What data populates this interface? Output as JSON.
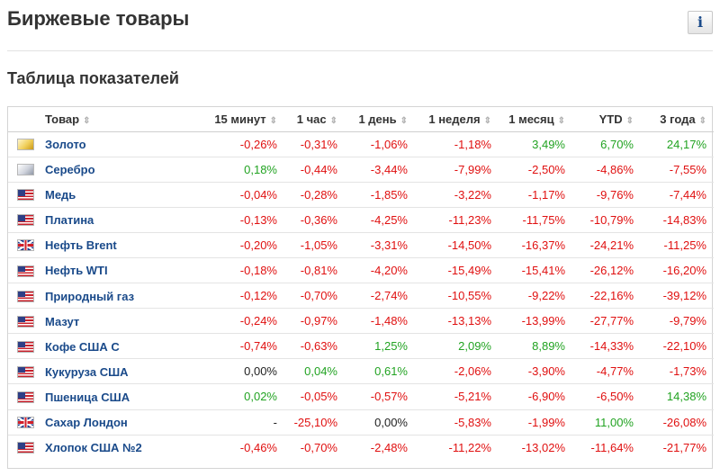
{
  "page": {
    "title": "Биржевые товары",
    "info_icon": "info-icon",
    "info_glyph": "i"
  },
  "section": {
    "title": "Таблица показателей"
  },
  "table": {
    "sort_glyph": "⇕",
    "columns": [
      {
        "key": "name",
        "label": "Товар"
      },
      {
        "key": "m15",
        "label": "15 минут"
      },
      {
        "key": "h1",
        "label": "1 час"
      },
      {
        "key": "d1",
        "label": "1 день"
      },
      {
        "key": "w1",
        "label": "1 неделя"
      },
      {
        "key": "mo1",
        "label": "1 месяц"
      },
      {
        "key": "ytd",
        "label": "YTD"
      },
      {
        "key": "y3",
        "label": "3 года"
      }
    ],
    "rows": [
      {
        "name": "Золото",
        "icon": "gold-icon",
        "values": [
          "-0,26%",
          "-0,31%",
          "-1,06%",
          "-1,18%",
          "3,49%",
          "6,70%",
          "24,17%"
        ]
      },
      {
        "name": "Серебро",
        "icon": "silver-icon",
        "values": [
          "0,18%",
          "-0,44%",
          "-3,44%",
          "-7,99%",
          "-2,50%",
          "-4,86%",
          "-7,55%"
        ]
      },
      {
        "name": "Медь",
        "icon": "us-flag-icon",
        "values": [
          "-0,04%",
          "-0,28%",
          "-1,85%",
          "-3,22%",
          "-1,17%",
          "-9,76%",
          "-7,44%"
        ]
      },
      {
        "name": "Платина",
        "icon": "us-flag-icon",
        "values": [
          "-0,13%",
          "-0,36%",
          "-4,25%",
          "-11,23%",
          "-11,75%",
          "-10,79%",
          "-14,83%"
        ]
      },
      {
        "name": "Нефть Brent",
        "icon": "uk-flag-icon",
        "values": [
          "-0,20%",
          "-1,05%",
          "-3,31%",
          "-14,50%",
          "-16,37%",
          "-24,21%",
          "-11,25%"
        ]
      },
      {
        "name": "Нефть WTI",
        "icon": "us-flag-icon",
        "values": [
          "-0,18%",
          "-0,81%",
          "-4,20%",
          "-15,49%",
          "-15,41%",
          "-26,12%",
          "-16,20%"
        ]
      },
      {
        "name": "Природный газ",
        "icon": "us-flag-icon",
        "values": [
          "-0,12%",
          "-0,70%",
          "-2,74%",
          "-10,55%",
          "-9,22%",
          "-22,16%",
          "-39,12%"
        ]
      },
      {
        "name": "Мазут",
        "icon": "us-flag-icon",
        "values": [
          "-0,24%",
          "-0,97%",
          "-1,48%",
          "-13,13%",
          "-13,99%",
          "-27,77%",
          "-9,79%"
        ]
      },
      {
        "name": "Кофе США С",
        "icon": "us-flag-icon",
        "values": [
          "-0,74%",
          "-0,63%",
          "1,25%",
          "2,09%",
          "8,89%",
          "-14,33%",
          "-22,10%"
        ]
      },
      {
        "name": "Кукуруза США",
        "icon": "us-flag-icon",
        "values": [
          "0,00%",
          "0,04%",
          "0,61%",
          "-2,06%",
          "-3,90%",
          "-4,77%",
          "-1,73%"
        ]
      },
      {
        "name": "Пшеница США",
        "icon": "us-flag-icon",
        "values": [
          "0,02%",
          "-0,05%",
          "-0,57%",
          "-5,21%",
          "-6,90%",
          "-6,50%",
          "14,38%"
        ]
      },
      {
        "name": "Сахар Лондон",
        "icon": "uk-flag-icon",
        "values": [
          "-",
          "-25,10%",
          "0,00%",
          "-5,83%",
          "-1,99%",
          "11,00%",
          "-26,08%"
        ]
      },
      {
        "name": "Хлопок США №2",
        "icon": "us-flag-icon",
        "values": [
          "-0,46%",
          "-0,70%",
          "-2,48%",
          "-11,22%",
          "-13,02%",
          "-11,64%",
          "-21,77%"
        ]
      }
    ]
  },
  "colors": {
    "negative": "#e01010",
    "positive": "#22a322",
    "neutral": "#222222",
    "link": "#1a4a8a"
  }
}
